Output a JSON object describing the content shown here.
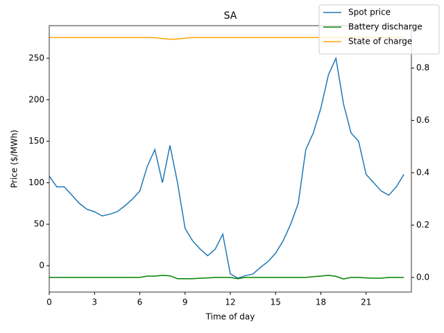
{
  "chart_data": {
    "type": "line",
    "title": "SA",
    "xlabel": "Time of day",
    "ylabel": "Price ($/MWh)",
    "x": [
      0,
      0.5,
      1,
      1.5,
      2,
      2.5,
      3,
      3.5,
      4,
      4.5,
      5,
      5.5,
      6,
      6.5,
      7,
      7.5,
      8,
      8.5,
      9,
      9.5,
      10,
      10.5,
      11,
      11.5,
      12,
      12.5,
      13,
      13.5,
      14,
      14.5,
      15,
      15.5,
      16,
      16.5,
      17,
      17.5,
      18,
      18.5,
      19,
      19.5,
      20,
      20.5,
      21,
      21.5,
      22,
      22.5,
      23,
      23.5
    ],
    "series": [
      {
        "name": "Spot price",
        "color": "#1f77b4",
        "axis": "y",
        "values": [
          108,
          95,
          95,
          85,
          75,
          68,
          65,
          60,
          62,
          65,
          72,
          80,
          90,
          120,
          140,
          100,
          145,
          100,
          45,
          30,
          20,
          12,
          20,
          38,
          -10,
          -15,
          -12,
          -10,
          -2,
          5,
          15,
          30,
          50,
          75,
          140,
          160,
          190,
          230,
          250,
          195,
          160,
          150,
          110,
          100,
          90,
          85,
          95,
          110
        ]
      },
      {
        "name": "Battery discharge",
        "color": "#008000",
        "axis": "y2",
        "values": [
          0,
          0,
          0,
          0,
          0,
          0,
          0,
          0,
          0,
          0,
          0,
          0,
          0,
          0.005,
          0.005,
          0.008,
          0.006,
          -0.005,
          -0.005,
          -0.005,
          -0.003,
          -0.002,
          0,
          0,
          0,
          -0.005,
          0,
          0,
          0,
          0,
          0,
          0,
          0,
          0,
          0,
          0.003,
          0.005,
          0.008,
          0.004,
          -0.006,
          0,
          0,
          -0.002,
          -0.003,
          -0.003,
          0,
          0,
          0
        ]
      },
      {
        "name": "State of charge",
        "color": "#ffa500",
        "axis": "y2",
        "values": [
          0.917,
          0.917,
          0.917,
          0.917,
          0.917,
          0.917,
          0.917,
          0.917,
          0.917,
          0.917,
          0.917,
          0.917,
          0.917,
          0.917,
          0.916,
          0.913,
          0.91,
          0.911,
          0.914,
          0.917,
          0.917,
          0.917,
          0.917,
          0.917,
          0.917,
          0.917,
          0.917,
          0.917,
          0.917,
          0.917,
          0.917,
          0.917,
          0.917,
          0.917,
          0.917,
          0.917,
          0.917,
          0.917,
          0.917,
          0.917,
          0.917,
          0.917,
          0.917,
          0.917,
          0.917,
          0.917,
          0.917,
          0.917
        ]
      }
    ],
    "xlim": [
      0,
      24
    ],
    "xticks": [
      0,
      3,
      6,
      9,
      12,
      15,
      18,
      21
    ],
    "ylim": [
      -31.8,
      289.3
    ],
    "yticks": [
      0,
      50,
      100,
      150,
      200,
      250
    ],
    "y2lim": [
      -0.056,
      0.962
    ],
    "y2ticks": [
      {
        "value": 0,
        "label": "0.0"
      },
      0.2,
      0.4,
      0.6,
      0.8
    ],
    "legend": "upper right"
  }
}
